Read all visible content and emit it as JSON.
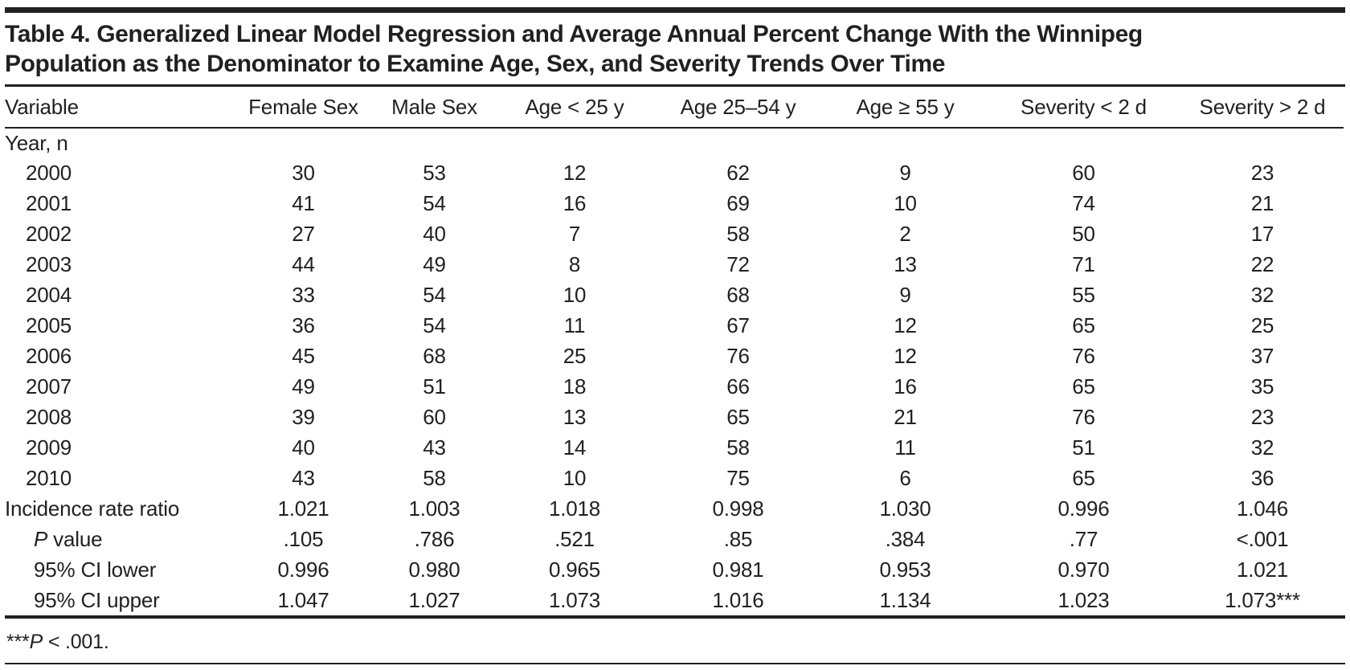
{
  "table": {
    "title_lines": [
      "Table 4. Generalized Linear Model Regression and Average Annual Percent Change With the Winnipeg",
      "Population as the Denominator to Examine Age, Sex, and Severity Trends Over Time"
    ],
    "columns": [
      "Variable",
      "Female Sex",
      "Male Sex",
      "Age < 25 y",
      "Age 25–54 y",
      "Age ≥ 55 y",
      "Severity < 2 d",
      "Severity > 2 d"
    ],
    "body_rows": [
      {
        "label": "Year, n",
        "section": true
      },
      {
        "label": "2000",
        "indent": "year",
        "values": [
          "30",
          "53",
          "12",
          "62",
          "9",
          "60",
          "23"
        ]
      },
      {
        "label": "2001",
        "indent": "year",
        "values": [
          "41",
          "54",
          "16",
          "69",
          "10",
          "74",
          "21"
        ]
      },
      {
        "label": "2002",
        "indent": "year",
        "values": [
          "27",
          "40",
          "7",
          "58",
          "2",
          "50",
          "17"
        ]
      },
      {
        "label": "2003",
        "indent": "year",
        "values": [
          "44",
          "49",
          "8",
          "72",
          "13",
          "71",
          "22"
        ]
      },
      {
        "label": "2004",
        "indent": "year",
        "values": [
          "33",
          "54",
          "10",
          "68",
          "9",
          "55",
          "32"
        ]
      },
      {
        "label": "2005",
        "indent": "year",
        "values": [
          "36",
          "54",
          "11",
          "67",
          "12",
          "65",
          "25"
        ]
      },
      {
        "label": "2006",
        "indent": "year",
        "values": [
          "45",
          "68",
          "25",
          "76",
          "12",
          "76",
          "37"
        ]
      },
      {
        "label": "2007",
        "indent": "year",
        "values": [
          "49",
          "51",
          "18",
          "66",
          "16",
          "65",
          "35"
        ]
      },
      {
        "label": "2008",
        "indent": "year",
        "values": [
          "39",
          "60",
          "13",
          "65",
          "21",
          "76",
          "23"
        ]
      },
      {
        "label": "2009",
        "indent": "year",
        "values": [
          "40",
          "43",
          "14",
          "58",
          "11",
          "51",
          "32"
        ]
      },
      {
        "label": "2010",
        "indent": "year",
        "values": [
          "43",
          "58",
          "10",
          "75",
          "6",
          "65",
          "36"
        ]
      },
      {
        "label": "Incidence rate ratio",
        "values": [
          "1.021",
          "1.003",
          "1.018",
          "0.998",
          "1.030",
          "0.996",
          "1.046"
        ]
      },
      {
        "label": "P value",
        "indent": "stat",
        "italic_first": true,
        "values": [
          ".105",
          ".786",
          ".521",
          ".85",
          ".384",
          ".77",
          "<.001"
        ]
      },
      {
        "label": "95% CI lower",
        "indent": "stat",
        "values": [
          "0.996",
          "0.980",
          "0.965",
          "0.981",
          "0.953",
          "0.970",
          "1.021"
        ]
      },
      {
        "label": "95% CI upper",
        "indent": "stat",
        "values": [
          "1.047",
          "1.027",
          "1.073",
          "1.016",
          "1.134",
          "1.023",
          "1.073***"
        ]
      }
    ],
    "footnote": {
      "stars": "***",
      "italic": "P",
      "rest": " < .001."
    }
  },
  "colors": {
    "text": "#231f20",
    "rule": "#231f20",
    "background": "#ffffff"
  }
}
